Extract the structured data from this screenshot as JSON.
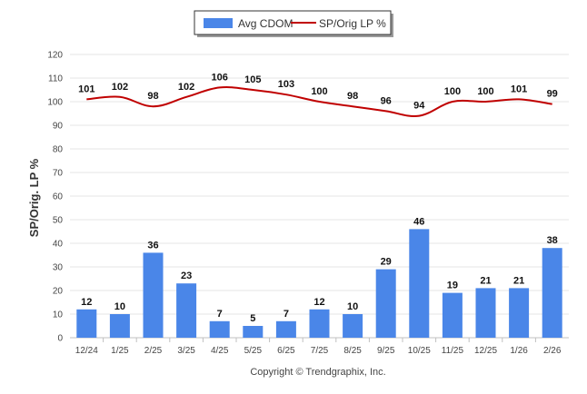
{
  "chart_data": {
    "type": "bar",
    "categories": [
      "12/24",
      "1/25",
      "2/25",
      "3/25",
      "4/25",
      "5/25",
      "6/25",
      "7/25",
      "8/25",
      "9/25",
      "10/25",
      "11/25",
      "12/25",
      "1/26",
      "2/26"
    ],
    "series": [
      {
        "name": "Avg CDOM",
        "type": "bar",
        "color": "#4a86e8",
        "values": [
          12,
          10,
          36,
          23,
          7,
          5,
          7,
          12,
          10,
          29,
          46,
          19,
          21,
          21,
          38
        ]
      },
      {
        "name": "SP/Orig LP %",
        "type": "line",
        "color": "#c00000",
        "values": [
          101,
          102,
          98,
          102,
          106,
          105,
          103,
          100,
          98,
          96,
          94,
          100,
          100,
          101,
          99
        ]
      }
    ],
    "ylabel": "SP/Orig. LP %",
    "ylim": [
      0,
      120
    ],
    "yticks": [
      0,
      10,
      20,
      30,
      40,
      50,
      60,
      70,
      80,
      90,
      100,
      110,
      120
    ],
    "grid": true,
    "legend_position": "top-center"
  },
  "footer": {
    "copyright": "Copyright © Trendgraphix, Inc."
  }
}
